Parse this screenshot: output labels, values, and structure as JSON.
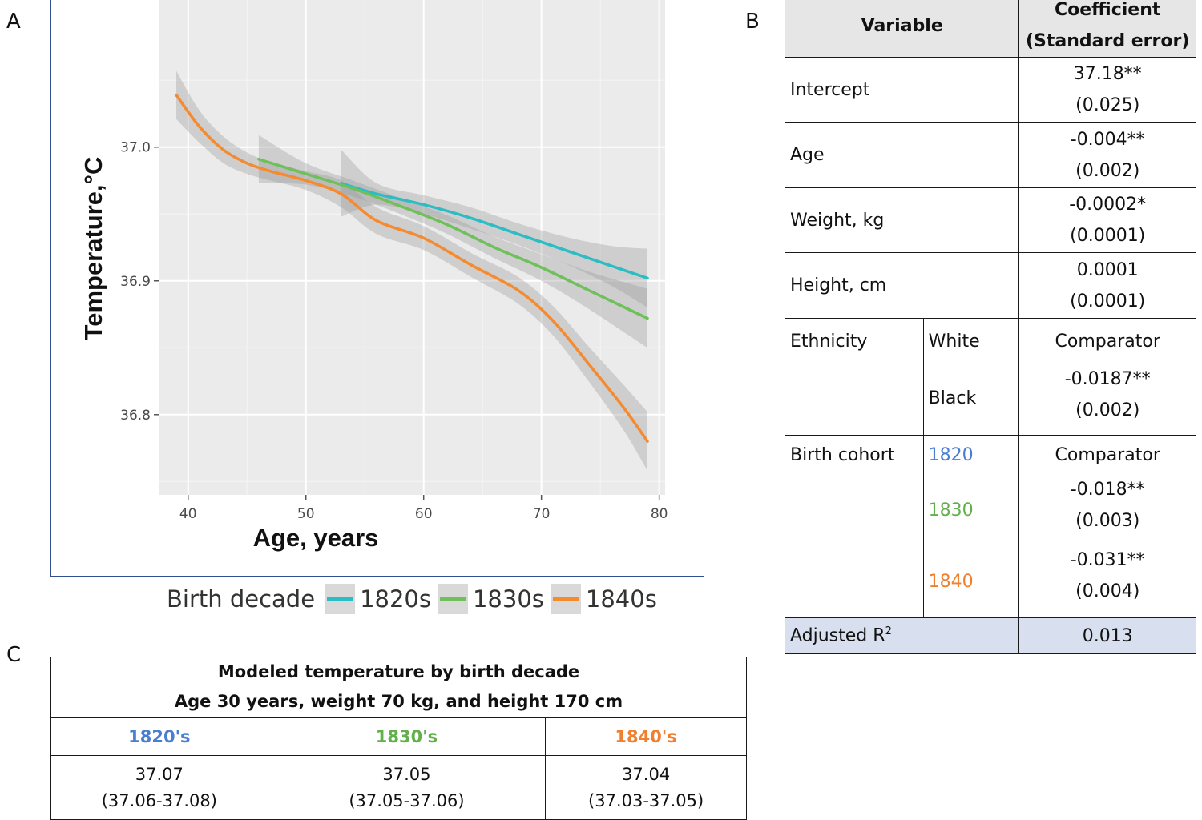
{
  "panels": {
    "a": "A",
    "b": "B",
    "c": "C"
  },
  "colors": {
    "c1820": "#2bbcc4",
    "c1830": "#6fbf5a",
    "c1840": "#f58a2e",
    "blue_label": "#4a7fd0",
    "green_label": "#62b04a",
    "orange_label": "#f07f2e"
  },
  "chart_data": {
    "type": "line",
    "title": "",
    "xlabel": "Age, years",
    "ylabel": "Temperature,°C",
    "xlim": [
      37.5,
      80.5
    ],
    "ylim": [
      36.74,
      37.11
    ],
    "x_ticks": [
      40,
      50,
      60,
      70,
      80
    ],
    "y_ticks": [
      36.8,
      36.9,
      37.0
    ],
    "x_tick_labels": [
      "40",
      "50",
      "60",
      "70",
      "80"
    ],
    "y_tick_labels": [
      "36.8",
      "36.9",
      "37.0"
    ],
    "grid": true,
    "legend": {
      "title": "Birth decade",
      "position": "bottom"
    },
    "series": [
      {
        "name": "1820s",
        "color": "#2bbcc4",
        "x": [
          53,
          56,
          60,
          64,
          68,
          72,
          76,
          79
        ],
        "y": [
          36.973,
          36.965,
          36.957,
          36.947,
          36.935,
          36.923,
          36.911,
          36.902
        ],
        "ci": [
          0.025,
          0.008,
          0.007,
          0.008,
          0.008,
          0.01,
          0.015,
          0.022
        ]
      },
      {
        "name": "1830s",
        "color": "#6fbf5a",
        "x": [
          46,
          50,
          54,
          58,
          62,
          66,
          70,
          74,
          79
        ],
        "y": [
          36.991,
          36.98,
          36.969,
          36.956,
          36.942,
          36.925,
          36.91,
          36.893,
          36.872
        ],
        "ci": [
          0.018,
          0.008,
          0.006,
          0.006,
          0.007,
          0.008,
          0.01,
          0.014,
          0.022
        ]
      },
      {
        "name": "1840s",
        "color": "#f58a2e",
        "x": [
          39,
          41,
          43,
          45,
          47,
          50,
          53,
          56,
          60,
          64,
          68,
          71,
          74,
          77,
          79
        ],
        "y": [
          37.039,
          37.015,
          36.998,
          36.988,
          36.982,
          36.975,
          36.965,
          36.945,
          36.932,
          36.912,
          36.893,
          36.87,
          36.838,
          36.805,
          36.78
        ],
        "ci": [
          0.018,
          0.012,
          0.01,
          0.008,
          0.007,
          0.007,
          0.01,
          0.01,
          0.009,
          0.009,
          0.01,
          0.011,
          0.013,
          0.017,
          0.022
        ]
      }
    ]
  },
  "table_b": {
    "header": {
      "variable": "Variable",
      "coef_line1": "Coefficient",
      "coef_line2": "(Standard error)"
    },
    "intercept": {
      "label": "Intercept",
      "coef": "37.18**",
      "se": "(0.025)"
    },
    "age": {
      "label": "Age",
      "coef": "-0.004**",
      "se": "(0.002)"
    },
    "weight": {
      "label": "Weight, kg",
      "coef": "-0.0002*",
      "se": "(0.0001)"
    },
    "height": {
      "label": "Height, cm",
      "coef": "0.0001",
      "se": "(0.0001)"
    },
    "ethnicity": {
      "label": "Ethnicity",
      "white": "White",
      "white_value": "Comparator",
      "black": "Black",
      "black_coef": "-0.0187**",
      "black_se": "(0.002)"
    },
    "cohort": {
      "label": "Birth cohort",
      "y1820": "1820",
      "y1820_value": "Comparator",
      "y1830": "1830",
      "y1830_coef": "-0.018**",
      "y1830_se": "(0.003)",
      "y1840": "1840",
      "y1840_coef": "-0.031**",
      "y1840_se": "(0.004)"
    },
    "r2": {
      "label": "Adjusted R",
      "sup": "2",
      "value": "0.013"
    }
  },
  "table_c": {
    "title_line1": "Modeled temperature by birth decade",
    "title_line2": "Age 30 years, weight 70 kg, and height 170 cm",
    "columns": [
      {
        "head": "1820's",
        "value": "37.07",
        "ci": "(37.06-37.08)"
      },
      {
        "head": "1830's",
        "value": "37.05",
        "ci": "(37.05-37.06)"
      },
      {
        "head": "1840's",
        "value": "37.04",
        "ci": "(37.03-37.05)"
      }
    ]
  }
}
